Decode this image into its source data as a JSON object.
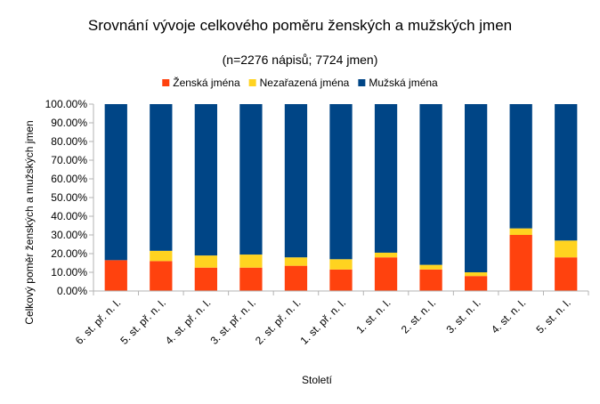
{
  "chart_data": {
    "type": "bar",
    "stacked": true,
    "title": "Srovnání vývoje celkového poměru ženských a mužských jmen",
    "subtitle": "(n=2276 nápisů; 7724 jmen)",
    "xlabel": "Století",
    "ylabel": "Celkový poměr ženských a mužských jmen",
    "ylim": [
      0,
      100
    ],
    "y_ticks": [
      "0.00%",
      "10.00%",
      "20.00%",
      "30.00%",
      "40.00%",
      "50.00%",
      "60.00%",
      "70.00%",
      "80.00%",
      "90.00%",
      "100.00%"
    ],
    "legend_position": "top",
    "grid": false,
    "categories": [
      "6. st. př. n. l.",
      "5. st. př. n. l.",
      "4. st. př. n. l.",
      "3. st. př. n. l.",
      "2. st. př. n. l.",
      "1. st. př. n. l.",
      "1. st. n. l.",
      "2. st. n. l.",
      "3. st. n. l.",
      "4. st. n. l.",
      "5. st. n. l."
    ],
    "series": [
      {
        "name": "Ženská jména",
        "color": "#ff420e",
        "values": [
          16.5,
          16.0,
          12.5,
          12.5,
          13.5,
          11.5,
          18.0,
          11.5,
          8.0,
          30.0,
          18.0
        ]
      },
      {
        "name": "Nezařazená jména",
        "color": "#ffd320",
        "values": [
          0.0,
          5.5,
          6.5,
          7.0,
          4.5,
          5.5,
          2.5,
          2.5,
          2.0,
          3.5,
          9.0
        ]
      },
      {
        "name": "Mužská jména",
        "color": "#004586",
        "values": [
          83.5,
          78.5,
          81.0,
          80.5,
          82.0,
          83.0,
          79.5,
          86.0,
          90.0,
          66.5,
          73.0
        ]
      }
    ]
  }
}
